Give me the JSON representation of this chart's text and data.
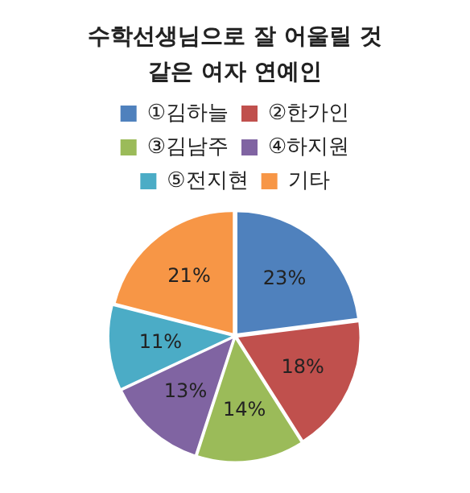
{
  "chart_data": {
    "type": "pie",
    "title": "수학선생님으로 잘 어울릴 것 같은 여자 연예인",
    "categories": [
      "①김하늘",
      "②한가인",
      "③김남주",
      "④하지원",
      "⑤전지현",
      "기타"
    ],
    "values": [
      23,
      18,
      14,
      13,
      11,
      21
    ],
    "colors": [
      "#4f81bd",
      "#c0504d",
      "#9bbb59",
      "#8064a2",
      "#4bacc6",
      "#f79646"
    ],
    "value_labels": [
      "23%",
      "18%",
      "14%",
      "13%",
      "11%",
      "21%"
    ],
    "legend": "top"
  }
}
